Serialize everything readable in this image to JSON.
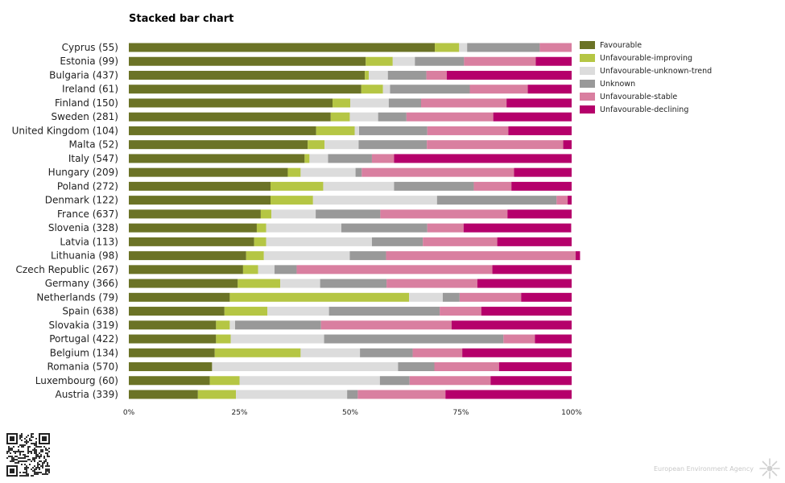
{
  "chart_data": {
    "type": "bar",
    "orientation": "horizontal",
    "stacked": true,
    "title": "Stacked bar chart",
    "xlim": [
      0,
      100
    ],
    "x_ticks": [
      "0%",
      "25%",
      "50%",
      "75%",
      "100%"
    ],
    "legend_position": "right",
    "categories": [
      "Cyprus (55)",
      "Estonia (99)",
      "Bulgaria (437)",
      "Ireland (61)",
      "Finland (150)",
      "Sweden (281)",
      "United Kingdom (104)",
      "Malta (52)",
      "Italy (547)",
      "Hungary (209)",
      "Poland (272)",
      "Denmark (122)",
      "France (637)",
      "Slovenia (328)",
      "Latvia (113)",
      "Lithuania (98)",
      "Czech Republic (267)",
      "Germany (366)",
      "Netherlands (79)",
      "Spain (638)",
      "Slovakia (319)",
      "Portugal (422)",
      "Belgium (134)",
      "Romania (570)",
      "Luxembourg (60)",
      "Austria (339)"
    ],
    "series": [
      {
        "name": "Favourable",
        "color": "#6b7326",
        "values": [
          69.1,
          53.5,
          53.3,
          52.5,
          46.0,
          45.6,
          42.3,
          40.4,
          39.7,
          35.9,
          32.0,
          32.0,
          29.8,
          28.9,
          28.3,
          26.5,
          25.8,
          24.6,
          22.8,
          21.6,
          19.7,
          19.7,
          19.4,
          18.8,
          18.3,
          15.6
        ]
      },
      {
        "name": "Unfavourable-improving",
        "color": "#b5c644",
        "values": [
          5.5,
          6.1,
          0.9,
          4.9,
          4.0,
          4.3,
          8.7,
          3.8,
          1.1,
          2.9,
          11.9,
          9.6,
          2.4,
          2.1,
          2.7,
          4.0,
          3.4,
          9.6,
          40.5,
          9.7,
          3.1,
          3.3,
          19.4,
          0.0,
          6.7,
          8.6
        ]
      },
      {
        "name": "Unfavourable-unknown-trend",
        "color": "#dcdcdc",
        "values": [
          1.8,
          5.0,
          4.3,
          1.6,
          8.7,
          6.4,
          1.0,
          7.7,
          4.2,
          12.4,
          16.0,
          28.0,
          10.0,
          17.0,
          23.9,
          19.4,
          3.7,
          9.0,
          7.6,
          13.9,
          1.2,
          21.1,
          13.4,
          42.0,
          31.7,
          25.1
        ]
      },
      {
        "name": "Unknown",
        "color": "#999999",
        "values": [
          16.4,
          11.1,
          8.7,
          18.0,
          7.3,
          6.4,
          15.4,
          15.4,
          9.9,
          1.4,
          18.0,
          27.0,
          14.6,
          19.4,
          11.5,
          8.2,
          5.0,
          15.0,
          3.8,
          25.0,
          19.4,
          40.5,
          11.9,
          8.2,
          6.7,
          2.4
        ]
      },
      {
        "name": "Unfavourable-stable",
        "color": "#d97fa0",
        "values": [
          7.2,
          16.2,
          4.6,
          13.1,
          19.3,
          19.6,
          18.3,
          30.8,
          5.0,
          34.4,
          8.5,
          2.5,
          28.7,
          8.2,
          16.8,
          42.8,
          44.2,
          20.5,
          13.9,
          9.4,
          29.5,
          7.1,
          11.2,
          14.6,
          18.3,
          19.8
        ]
      },
      {
        "name": "Unfavourable-declining",
        "color": "#b5006b",
        "values": [
          0.0,
          8.1,
          28.2,
          9.9,
          14.7,
          17.7,
          14.3,
          1.9,
          40.1,
          13.0,
          13.6,
          0.9,
          14.5,
          24.3,
          16.8,
          1.0,
          17.9,
          21.3,
          11.4,
          20.4,
          27.1,
          8.3,
          24.7,
          16.4,
          18.3,
          28.5
        ]
      }
    ]
  },
  "footer": {
    "qr_icon": "qr-code-icon",
    "agency_text": "European Environment Agency",
    "agency_logo_icon": "eea-sun-logo-icon"
  }
}
